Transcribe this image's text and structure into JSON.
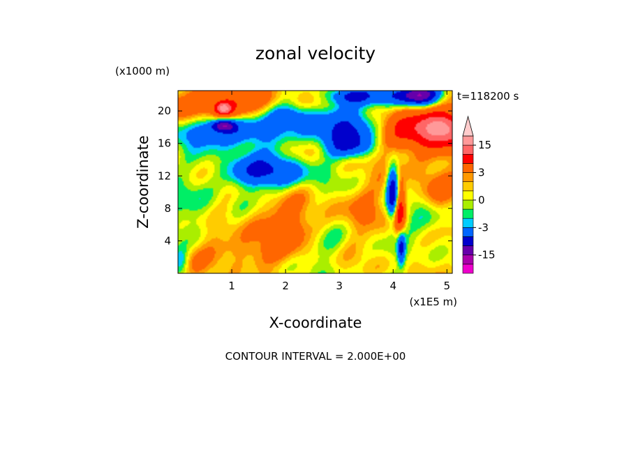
{
  "chart_data": {
    "type": "heatmap",
    "title": "zonal velocity",
    "xlabel": "X-coordinate",
    "ylabel": "Z-coordinate",
    "x_unit": "(x1E5 m)",
    "y_unit": "(x1000 m)",
    "time_label": "t=118200 s",
    "footer": "CONTOUR INTERVAL = 2.000E+00",
    "xlim": [
      0,
      5.1
    ],
    "ylim": [
      0,
      22.5
    ],
    "x_ticks": [
      {
        "v": 1,
        "label": "1"
      },
      {
        "v": 2,
        "label": "2"
      },
      {
        "v": 3,
        "label": "3"
      },
      {
        "v": 4,
        "label": "4"
      },
      {
        "v": 5,
        "label": "5"
      }
    ],
    "y_ticks": [
      {
        "v": 4,
        "label": "4"
      },
      {
        "v": 8,
        "label": "8"
      },
      {
        "v": 12,
        "label": "12"
      },
      {
        "v": 16,
        "label": "16"
      },
      {
        "v": 20,
        "label": "20"
      }
    ],
    "colorbar": {
      "levels": [
        -19,
        -15,
        -11,
        -7,
        -3,
        -2,
        -1,
        0,
        1,
        2,
        3,
        7,
        11,
        15,
        19
      ],
      "colors": [
        "#ee00cc",
        "#aa00aa",
        "#6600aa",
        "#0000cc",
        "#0066ff",
        "#00ccff",
        "#00ee66",
        "#aaee00",
        "#ffff00",
        "#ffcc00",
        "#ff9900",
        "#ff6600",
        "#ff0000",
        "#ff6666",
        "#ff9999",
        "#ffcccc"
      ],
      "tick_labels": [
        {
          "v": 15,
          "label": "15"
        },
        {
          "v": 3,
          "label": "3"
        },
        {
          "v": 0,
          "label": "0"
        },
        {
          "v": -3,
          "label": "-3"
        },
        {
          "v": -15,
          "label": "-15"
        }
      ]
    },
    "field_features": [
      {
        "x": 1.6,
        "z": 12.5,
        "value": -8,
        "sx": 0.55,
        "sz": 1.4
      },
      {
        "x": 1.0,
        "z": 17.6,
        "value": -8,
        "sx": 0.7,
        "sz": 1.4
      },
      {
        "x": 0.85,
        "z": 18.2,
        "value": -13,
        "sx": 0.15,
        "sz": 0.5
      },
      {
        "x": 3.1,
        "z": 18.0,
        "value": -8,
        "sx": 0.45,
        "sz": 1.8
      },
      {
        "x": 3.2,
        "z": 15.6,
        "value": -5,
        "sx": 0.3,
        "sz": 1.0
      },
      {
        "x": 2.1,
        "z": 19.5,
        "value": -5,
        "sx": 0.3,
        "sz": 1.0
      },
      {
        "x": 4.5,
        "z": 22.0,
        "value": -13,
        "sx": 0.25,
        "sz": 0.8
      },
      {
        "x": 4.05,
        "z": 21.8,
        "value": -7,
        "sx": 0.4,
        "sz": 0.9
      },
      {
        "x": 3.2,
        "z": 21.8,
        "value": -6,
        "sx": 0.3,
        "sz": 0.7
      },
      {
        "x": 4.0,
        "z": 10.0,
        "value": -12,
        "sx": 0.08,
        "sz": 2.2
      },
      {
        "x": 4.15,
        "z": 3.2,
        "value": -9,
        "sx": 0.05,
        "sz": 1.4
      },
      {
        "x": 4.65,
        "z": 6.5,
        "value": -3,
        "sx": 0.25,
        "sz": 1.6
      },
      {
        "x": 0.75,
        "z": 20.5,
        "value": 7,
        "sx": 0.7,
        "sz": 1.6
      },
      {
        "x": 0.85,
        "z": 20.3,
        "value": 12,
        "sx": 0.1,
        "sz": 0.5
      },
      {
        "x": 4.55,
        "z": 17.5,
        "value": 8,
        "sx": 0.55,
        "sz": 2.4
      },
      {
        "x": 4.9,
        "z": 18.0,
        "value": 11,
        "sx": 0.3,
        "sz": 1.2
      },
      {
        "x": 4.12,
        "z": 8.0,
        "value": 10,
        "sx": 0.07,
        "sz": 2.4
      },
      {
        "x": 2.0,
        "z": 6.0,
        "value": 4,
        "sx": 0.5,
        "sz": 2.0
      },
      {
        "x": 1.2,
        "z": 2.5,
        "value": 3,
        "sx": 0.7,
        "sz": 1.5
      },
      {
        "x": 4.8,
        "z": 10.0,
        "value": 3,
        "sx": 0.3,
        "sz": 2.0
      },
      {
        "x": 3.5,
        "z": 8.0,
        "value": 2,
        "sx": 0.4,
        "sz": 2.5
      },
      {
        "x": 0.3,
        "z": 7.5,
        "value": -2,
        "sx": 0.3,
        "sz": 2.2
      },
      {
        "x": 2.8,
        "z": 3.5,
        "value": -2,
        "sx": 0.3,
        "sz": 1.5
      },
      {
        "x": 0.05,
        "z": 1.5,
        "value": -4,
        "sx": 0.1,
        "sz": 1.2
      }
    ]
  }
}
